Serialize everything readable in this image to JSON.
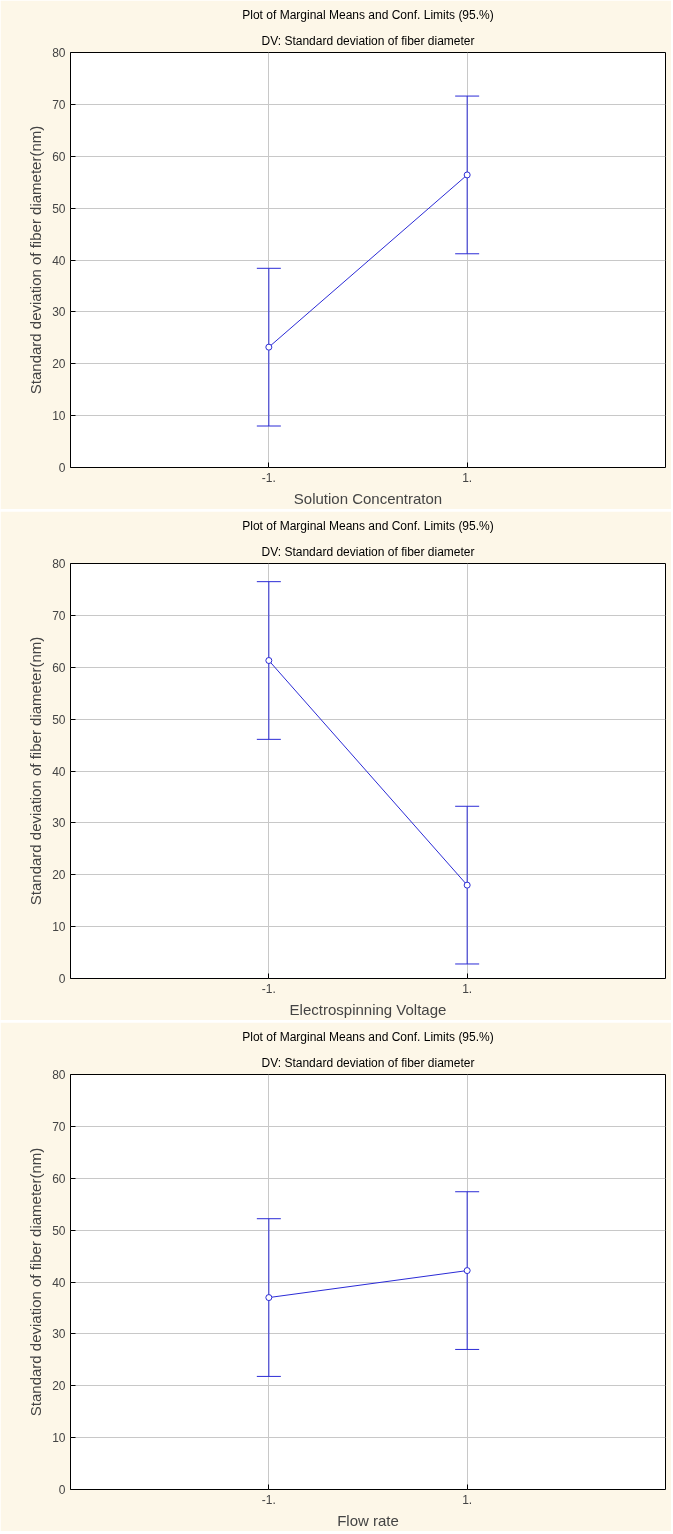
{
  "chart_data": [
    {
      "type": "line",
      "title": "Plot of Marginal Means and Conf. Limits (95.%)",
      "subtitle": "DV: Standard deviation of fiber diameter",
      "xlabel": "Solution Concentraton",
      "ylabel": "Standard deviation of fiber diameter(nm)",
      "categories": [
        "-1.",
        "1."
      ],
      "series": [
        {
          "color": "#2b2bd6",
          "values": [
            23.2,
            56.4
          ],
          "errors": [
            15.2,
            15.2
          ]
        }
      ],
      "ylim": [
        0,
        80
      ],
      "yticks": [
        0,
        10,
        20,
        30,
        40,
        50,
        60,
        70,
        80
      ],
      "grid": true,
      "marker": "circle",
      "line_style": "solid"
    },
    {
      "type": "line",
      "title": "Plot of Marginal Means and Conf. Limits (95.%)",
      "subtitle": "DV: Standard deviation of fiber diameter",
      "xlabel": "Electrospinning Voltage",
      "ylabel": "Standard deviation of fiber diameter(nm)",
      "categories": [
        "-1.",
        "1."
      ],
      "series": [
        {
          "color": "#2b2bd6",
          "values": [
            61.3,
            18.0
          ],
          "errors": [
            15.2,
            15.2
          ]
        }
      ],
      "ylim": [
        0,
        80
      ],
      "yticks": [
        0,
        10,
        20,
        30,
        40,
        50,
        60,
        70,
        80
      ],
      "grid": true,
      "marker": "circle",
      "line_style": "solid"
    },
    {
      "type": "line",
      "title": "Plot of Marginal Means and Conf. Limits (95.%)",
      "subtitle": "DV: Standard deviation of fiber diameter",
      "xlabel": "Flow rate",
      "ylabel": "Standard deviation of fiber diameter(nm)",
      "categories": [
        "-1.",
        "1."
      ],
      "series": [
        {
          "color": "#2b2bd6",
          "values": [
            37.0,
            42.2
          ],
          "errors": [
            15.2,
            15.2
          ]
        }
      ],
      "ylim": [
        0,
        80
      ],
      "yticks": [
        0,
        10,
        20,
        30,
        40,
        50,
        60,
        70,
        80
      ],
      "grid": true,
      "marker": "circle",
      "line_style": "solid"
    }
  ]
}
